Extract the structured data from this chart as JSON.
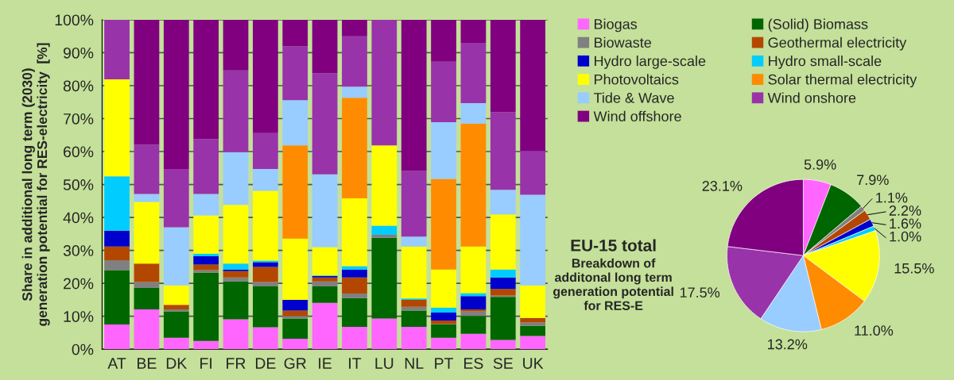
{
  "chart_data": [
    {
      "type": "bar",
      "stacked": true,
      "ylabel": "Share in additional long term (2030)\ngeneration potential for RES-electricity  [%]",
      "categories": [
        "AT",
        "BE",
        "DK",
        "FI",
        "FR",
        "DE",
        "GR",
        "IE",
        "IT",
        "LU",
        "NL",
        "PT",
        "ES",
        "SE",
        "UK"
      ],
      "series": [
        {
          "name": "Biogas",
          "color": "#ff66ff",
          "values": [
            7.5,
            12.1,
            3.5,
            2.5,
            9.1,
            6.7,
            3.2,
            14.1,
            6.8,
            9.3,
            6.8,
            3.5,
            4.7,
            2.8,
            4.0
          ]
        },
        {
          "name": "(Solid) Biomass",
          "color": "#006600",
          "values": [
            16.5,
            6.5,
            8.0,
            20.7,
            11.5,
            12.4,
            6.1,
            5.0,
            8.7,
            24.5,
            4.9,
            4.0,
            5.4,
            13.1,
            3.1
          ]
        },
        {
          "name": "Biowaste",
          "color": "#808080",
          "values": [
            3.0,
            1.8,
            0.6,
            0.8,
            1.2,
            1.3,
            0.8,
            1.5,
            1.4,
            0.9,
            1.2,
            0.2,
            1.4,
            0.4,
            1.0
          ]
        },
        {
          "name": "Geothermal electricity",
          "color": "#b34700",
          "values": [
            4.2,
            5.6,
            1.4,
            1.7,
            1.9,
            4.6,
            1.6,
            1.2,
            4.9,
            0,
            2.1,
            1.0,
            0.6,
            2.0,
            1.4
          ]
        },
        {
          "name": "Hydro large-scale",
          "color": "#0000cc",
          "values": [
            4.8,
            0,
            0,
            2.5,
            0.5,
            1.4,
            3.3,
            0.4,
            2.4,
            0,
            0,
            2.4,
            4.0,
            3.5,
            0
          ]
        },
        {
          "name": "Hydro small-scale",
          "color": "#00ccff",
          "values": [
            16.5,
            0,
            0,
            0.8,
            1.8,
            0.5,
            0,
            0.2,
            1.0,
            2.8,
            0.4,
            1.5,
            0.9,
            2.4,
            0
          ]
        },
        {
          "name": "Photovoltaics",
          "color": "#ffff00",
          "values": [
            29.4,
            18.7,
            5.9,
            11.6,
            17.8,
            21.2,
            18.6,
            8.6,
            20.6,
            24.4,
            15.8,
            11.6,
            14.2,
            16.7,
            9.9
          ]
        },
        {
          "name": "Solar thermal electricity",
          "color": "#ff8c00",
          "values": [
            0,
            0,
            0,
            0,
            0,
            0,
            28.3,
            0,
            30.5,
            0,
            0,
            27.5,
            37.3,
            0,
            0
          ]
        },
        {
          "name": "Tide & Wave",
          "color": "#99ccff",
          "values": [
            0,
            2.4,
            17.6,
            6.5,
            16.0,
            6.6,
            13.7,
            22.1,
            3.4,
            0,
            3.0,
            17.2,
            6.2,
            7.5,
            27.5
          ]
        },
        {
          "name": "Wind onshore",
          "color": "#9933aa",
          "values": [
            18.1,
            15.0,
            17.7,
            16.7,
            24.8,
            10.9,
            16.4,
            30.7,
            15.3,
            38.1,
            19.9,
            18.4,
            18.3,
            23.6,
            13.3
          ]
        },
        {
          "name": "Wind offshore",
          "color": "#800080",
          "values": [
            0,
            37.9,
            45.3,
            36.2,
            15.4,
            34.4,
            8.0,
            16.4,
            5.0,
            0,
            45.9,
            12.7,
            7.0,
            28.0,
            39.8
          ]
        }
      ],
      "ylim": [
        0,
        100
      ],
      "yticks": [
        {
          "value": 0,
          "label": "0%"
        },
        {
          "value": 10,
          "label": "10%"
        },
        {
          "value": 20,
          "label": "20%"
        },
        {
          "value": 30,
          "label": "30%"
        },
        {
          "value": 40,
          "label": "40%"
        },
        {
          "value": 50,
          "label": "50%"
        },
        {
          "value": 60,
          "label": "60%"
        },
        {
          "value": 70,
          "label": "70%"
        },
        {
          "value": 80,
          "label": "80%"
        },
        {
          "value": 90,
          "label": "90%"
        },
        {
          "value": 100,
          "label": "100%"
        }
      ],
      "grid": "y",
      "legend": "right"
    },
    {
      "type": "pie",
      "title": "EU-15 total",
      "subtitle": "Breakdown of\nadditonal long term\ngeneration potential\nfor RES-E",
      "categories": [
        null,
        null,
        null,
        null,
        null,
        null,
        null,
        null,
        null,
        null,
        null
      ],
      "values": [
        5.9,
        7.9,
        1.1,
        2.2,
        1.6,
        1.0,
        15.5,
        11.0,
        13.2,
        17.5,
        23.1
      ],
      "value_labels": [
        "5.9%",
        "7.9%",
        "1.1%",
        "2.2%",
        "1.6%",
        "1.0%",
        "15.5%",
        "11.0%",
        "13.2%",
        "17.5%",
        "23.1%"
      ],
      "colors": [
        "#ff66ff",
        "#006600",
        "#808080",
        "#b34700",
        "#0000cc",
        "#00ccff",
        "#ffff00",
        "#ff8c00",
        "#99ccff",
        "#9933aa",
        "#800080"
      ]
    }
  ]
}
